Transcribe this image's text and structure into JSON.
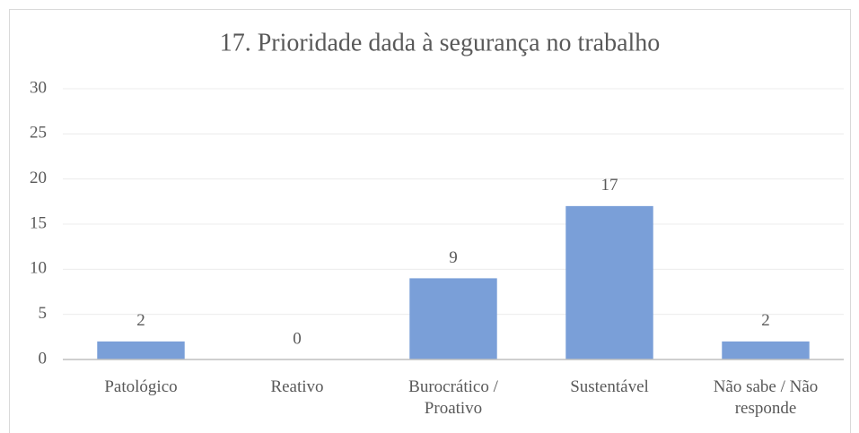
{
  "chart_data": {
    "type": "bar",
    "title": "17. Prioridade dada à segurança no trabalho",
    "categories": [
      "Patológico",
      "Reativo",
      "Burocrático / Proativo",
      "Sustentável",
      "Não sabe / Não responde"
    ],
    "values": [
      2,
      0,
      9,
      17,
      2
    ],
    "color": "#7a9fd8",
    "ylim": [
      0,
      30
    ],
    "yticks": [
      0,
      5,
      10,
      15,
      20,
      25,
      30
    ],
    "grid": true
  }
}
